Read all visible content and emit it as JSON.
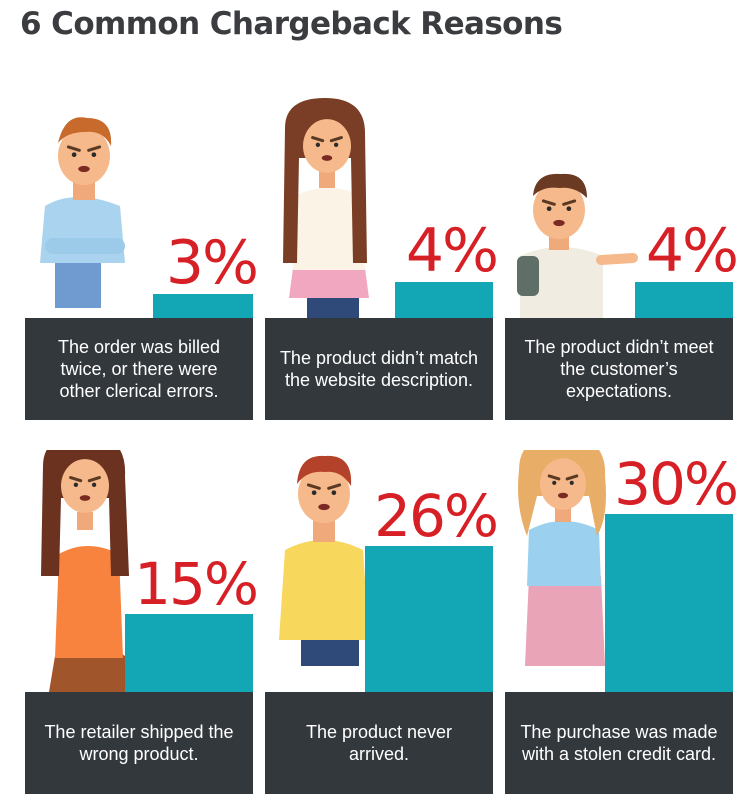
{
  "title": "6 Common Chargeback Reasons",
  "colors": {
    "title": "#3a3c40",
    "bar": "#13a6b4",
    "percent": "#d71f26",
    "caption_bg": "#33383d",
    "caption_text": "#ffffff"
  },
  "chart_data": {
    "type": "bar",
    "ylim": [
      0,
      30
    ],
    "categories": [
      "The order was billed twice, or there were other clerical errors.",
      "The product didn’t match the website description.",
      "The product didn’t meet the customer’s expectations.",
      "The retailer shipped the wrong product.",
      "The product never arrived.",
      "The purchase was made with a stolen credit card."
    ],
    "values": [
      3,
      4,
      4,
      15,
      26,
      30
    ],
    "value_labels": [
      "3%",
      "4%",
      "4%",
      "15%",
      "26%",
      "30%"
    ]
  }
}
